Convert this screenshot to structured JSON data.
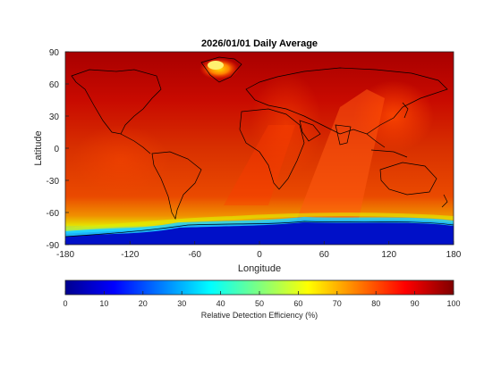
{
  "title": "2026/01/01 Daily Average",
  "map": {
    "xlabel": "Longitude",
    "ylabel": "Latitude",
    "xlim": [
      -180,
      180
    ],
    "ylim": [
      -90,
      90
    ],
    "xticks": [
      "-180",
      "-120",
      "-60",
      "0",
      "60",
      "120",
      "180"
    ],
    "yticks": [
      "90",
      "60",
      "30",
      "0",
      "-30",
      "-60",
      "-90"
    ],
    "colormap": "jet",
    "colorbar": {
      "label": "Relative Detection Efficiency (%)",
      "range": [
        0,
        100
      ],
      "ticks": [
        "0",
        "10",
        "20",
        "30",
        "40",
        "50",
        "60",
        "70",
        "80",
        "90",
        "100"
      ]
    }
  }
}
